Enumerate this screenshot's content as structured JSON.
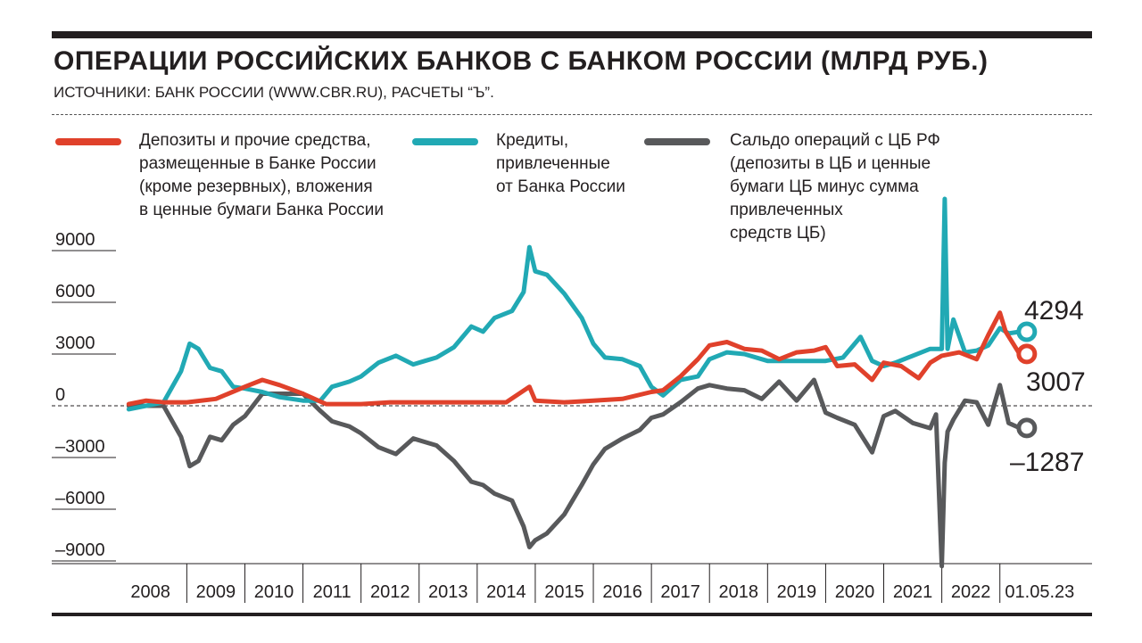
{
  "header": {
    "title": "ОПЕРАЦИИ РОССИЙСКИХ БАНКОВ С БАНКОМ РОССИИ (МЛРД РУБ.)",
    "source": "ИСТОЧНИКИ: БАНК РОССИИ (WWW.CBR.RU), РАСЧЕТЫ “Ъ”."
  },
  "legend": [
    {
      "label": "Депозиты и прочие средства,\nразмещенные в Банке России\n(кроме резервных), вложения\nв ценные бумаги Банка России",
      "color": "#e0412b"
    },
    {
      "label": "Кредиты,\nпривлеченные\nот Банка России",
      "color": "#21a9b4"
    },
    {
      "label": "Сальдо операций с ЦБ РФ\n(депозиты в ЦБ и ценные\nбумаги ЦБ минус сумма\nпривлеченных\nсредств ЦБ)",
      "color": "#58595b"
    }
  ],
  "chart_data": {
    "type": "line",
    "ylim": [
      -10000,
      12000
    ],
    "y_ticks": [
      9000,
      6000,
      3000,
      0,
      -3000,
      -6000,
      -9000
    ],
    "y_tick_labels": [
      "9000",
      "6000",
      "3000",
      "0",
      "–3000",
      "–6000",
      "–9000"
    ],
    "x_tick_labels": [
      "2008",
      "2009",
      "2010",
      "2011",
      "2012",
      "2013",
      "2014",
      "2015",
      "2016",
      "2017",
      "2018",
      "2019",
      "2020",
      "2021",
      "2022",
      "01.05.23"
    ],
    "end_labels": [
      "4294",
      "3007",
      "–1287"
    ],
    "series": [
      {
        "color": "#e0412b",
        "x": [
          2008.0,
          2008.3,
          2008.6,
          2009.0,
          2009.5,
          2010.0,
          2010.3,
          2010.6,
          2011.0,
          2011.4,
          2012.0,
          2012.5,
          2013.0,
          2013.5,
          2014.0,
          2014.5,
          2014.9,
          2015.0,
          2015.5,
          2016.0,
          2016.5,
          2017.0,
          2017.2,
          2017.5,
          2017.8,
          2018.0,
          2018.3,
          2018.6,
          2018.9,
          2019.2,
          2019.5,
          2019.8,
          2020.0,
          2020.2,
          2020.5,
          2020.8,
          2021.0,
          2021.3,
          2021.6,
          2021.8,
          2022.0,
          2022.3,
          2022.6,
          2022.8,
          2023.0,
          2023.1,
          2023.34
        ],
        "y": [
          100,
          300,
          200,
          200,
          400,
          1100,
          1500,
          1200,
          700,
          100,
          100,
          200,
          200,
          200,
          200,
          200,
          1100,
          300,
          200,
          300,
          400,
          800,
          900,
          1700,
          2700,
          3500,
          3700,
          3300,
          3200,
          2700,
          3100,
          3200,
          3400,
          2300,
          2400,
          1500,
          2500,
          2300,
          1600,
          2500,
          2900,
          3100,
          2700,
          4100,
          5400,
          4300,
          3007
        ]
      },
      {
        "color": "#21a9b4",
        "x": [
          2008.0,
          2008.3,
          2008.6,
          2008.9,
          2009.05,
          2009.2,
          2009.4,
          2009.6,
          2009.8,
          2010.0,
          2010.3,
          2010.6,
          2011.0,
          2011.3,
          2011.5,
          2011.8,
          2012.0,
          2012.3,
          2012.6,
          2012.9,
          2013.1,
          2013.3,
          2013.6,
          2013.9,
          2014.1,
          2014.3,
          2014.6,
          2014.8,
          2014.9,
          2015.0,
          2015.2,
          2015.5,
          2015.8,
          2016.0,
          2016.2,
          2016.5,
          2016.8,
          2017.0,
          2017.2,
          2017.5,
          2017.8,
          2018.0,
          2018.3,
          2018.6,
          2019.0,
          2019.5,
          2020.0,
          2020.3,
          2020.6,
          2020.8,
          2021.0,
          2021.2,
          2021.5,
          2021.8,
          2022.0,
          2022.05,
          2022.1,
          2022.2,
          2022.4,
          2022.6,
          2022.8,
          2023.0,
          2023.15,
          2023.34
        ],
        "y": [
          -200,
          0,
          200,
          2000,
          3600,
          3300,
          2200,
          2000,
          1100,
          1000,
          800,
          500,
          300,
          300,
          1100,
          1400,
          1700,
          2500,
          2900,
          2400,
          2600,
          2800,
          3400,
          4600,
          4300,
          5100,
          5500,
          6600,
          9200,
          7800,
          7600,
          6500,
          5100,
          3600,
          2800,
          2700,
          2300,
          1100,
          600,
          1500,
          1700,
          2700,
          3100,
          3000,
          2600,
          2600,
          2600,
          2800,
          4000,
          2600,
          2300,
          2500,
          2900,
          3300,
          3300,
          12000,
          3300,
          5000,
          3100,
          3200,
          3500,
          4500,
          4200,
          4294
        ]
      },
      {
        "color": "#58595b",
        "x": [
          2008.0,
          2008.3,
          2008.6,
          2008.9,
          2009.05,
          2009.2,
          2009.4,
          2009.6,
          2009.8,
          2010.0,
          2010.3,
          2010.6,
          2011.0,
          2011.3,
          2011.5,
          2011.8,
          2012.0,
          2012.3,
          2012.6,
          2012.9,
          2013.1,
          2013.3,
          2013.6,
          2013.9,
          2014.1,
          2014.3,
          2014.6,
          2014.8,
          2014.9,
          2015.0,
          2015.2,
          2015.5,
          2015.8,
          2016.0,
          2016.2,
          2016.5,
          2016.8,
          2017.0,
          2017.2,
          2017.5,
          2017.8,
          2018.0,
          2018.3,
          2018.6,
          2018.9,
          2019.2,
          2019.5,
          2019.8,
          2020.0,
          2020.2,
          2020.5,
          2020.8,
          2021.0,
          2021.2,
          2021.5,
          2021.8,
          2021.9,
          2022.0,
          2022.05,
          2022.1,
          2022.2,
          2022.4,
          2022.6,
          2022.8,
          2023.0,
          2023.15,
          2023.34
        ],
        "y": [
          0,
          0,
          0,
          -1800,
          -3500,
          -3200,
          -1800,
          -2000,
          -1100,
          -600,
          700,
          700,
          700,
          -300,
          -900,
          -1200,
          -1600,
          -2400,
          -2800,
          -1900,
          -2100,
          -2300,
          -3200,
          -4400,
          -4600,
          -5100,
          -5500,
          -7000,
          -8200,
          -7800,
          -7400,
          -6300,
          -4600,
          -3400,
          -2500,
          -1900,
          -1400,
          -700,
          -500,
          200,
          1000,
          1200,
          1000,
          900,
          400,
          1400,
          300,
          1500,
          -400,
          -700,
          -1100,
          -2700,
          -600,
          -300,
          -1000,
          -1300,
          -500,
          -9300,
          -3300,
          -1500,
          -800,
          300,
          200,
          -1100,
          1200,
          -1000,
          -1287
        ]
      }
    ]
  }
}
